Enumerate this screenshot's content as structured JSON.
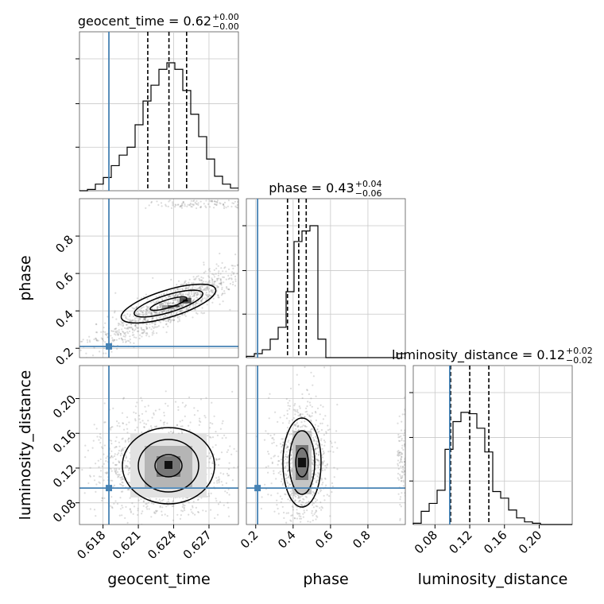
{
  "chart_data": {
    "type": "corner",
    "parameters": [
      "geocent_time",
      "phase",
      "luminosity_distance"
    ],
    "axis_labels": {
      "geocent_time": "geocent_time",
      "phase": "phase",
      "luminosity_distance": "luminosity_distance"
    },
    "ranges": {
      "geocent_time": [
        0.616,
        0.6295
      ],
      "phase": [
        0.15,
        1.0
      ],
      "luminosity_distance": [
        0.055,
        0.238
      ]
    },
    "ticks": {
      "geocent_time": [
        "0.618",
        "0.621",
        "0.624",
        "0.627"
      ],
      "phase": [
        "0.2",
        "0.4",
        "0.6",
        "0.8"
      ],
      "luminosity_distance": [
        "0.08",
        "0.12",
        "0.16",
        "0.20"
      ]
    },
    "injection": {
      "geocent_time": 0.6185,
      "phase": 0.21,
      "luminosity_distance": 0.097
    },
    "titles": [
      {
        "param": "geocent_time",
        "text": "geocent_time = 0.62",
        "plus": "+0.00",
        "minus": "−0.00"
      },
      {
        "param": "phase",
        "text": "phase = 0.43",
        "plus": "+0.04",
        "minus": "−0.06"
      },
      {
        "param": "luminosity_distance",
        "text": "luminosity_distance = 0.12",
        "plus": "+0.02",
        "minus": "−0.02"
      }
    ],
    "quantiles": {
      "geocent_time": [
        0.6218,
        0.6236,
        0.6251
      ],
      "phase": [
        0.37,
        0.43,
        0.47
      ],
      "luminosity_distance": [
        0.098,
        0.12,
        0.142
      ]
    },
    "histograms": {
      "geocent_time": [
        0,
        0.01,
        0.05,
        0.1,
        0.19,
        0.27,
        0.33,
        0.5,
        0.68,
        0.8,
        0.92,
        0.97,
        0.92,
        0.76,
        0.58,
        0.41,
        0.24,
        0.11,
        0.05,
        0.02
      ],
      "phase": [
        0.01,
        0.03,
        0.06,
        0.14,
        0.23,
        0.5,
        0.88,
        0.96,
        1.0,
        0.14,
        0,
        0,
        0,
        0,
        0,
        0,
        0,
        0,
        0,
        0.03
      ],
      "luminosity_distance": [
        0.01,
        0.1,
        0.16,
        0.26,
        0.57,
        0.78,
        0.85,
        0.84,
        0.73,
        0.55,
        0.25,
        0.2,
        0.11,
        0.05,
        0.02,
        0.01,
        0,
        0,
        0,
        0
      ]
    },
    "grid": true,
    "scatter_color": "#808080",
    "injection_color": "#4682b4"
  }
}
